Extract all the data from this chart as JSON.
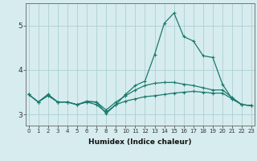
{
  "xlabel": "Humidex (Indice chaleur)",
  "x": [
    0,
    1,
    2,
    3,
    4,
    5,
    6,
    7,
    8,
    9,
    10,
    11,
    12,
    13,
    14,
    15,
    16,
    17,
    18,
    19,
    20,
    21,
    22,
    23
  ],
  "line1": [
    3.45,
    3.28,
    3.42,
    3.28,
    3.28,
    3.22,
    3.28,
    3.22,
    3.05,
    3.22,
    3.3,
    3.35,
    3.4,
    3.42,
    3.45,
    3.48,
    3.5,
    3.52,
    3.5,
    3.48,
    3.48,
    3.35,
    3.22,
    3.2
  ],
  "line2": [
    3.45,
    3.28,
    3.45,
    3.28,
    3.28,
    3.22,
    3.3,
    3.28,
    3.1,
    3.28,
    3.42,
    3.55,
    3.65,
    3.7,
    3.72,
    3.72,
    3.68,
    3.65,
    3.6,
    3.55,
    3.55,
    3.38,
    3.22,
    3.2
  ],
  "line3": [
    3.45,
    3.28,
    3.45,
    3.28,
    3.28,
    3.22,
    3.28,
    3.28,
    3.02,
    3.22,
    3.45,
    3.65,
    3.75,
    4.35,
    5.05,
    5.28,
    4.75,
    4.65,
    4.32,
    4.28,
    3.68,
    3.35,
    3.22,
    3.2
  ],
  "line_color": "#1a7a6e",
  "bg_color": "#d6ecee",
  "grid_color": "#aed0d4",
  "ylim": [
    2.75,
    5.5
  ],
  "yticks": [
    3,
    4,
    5
  ],
  "xlim": [
    -0.3,
    23.3
  ]
}
